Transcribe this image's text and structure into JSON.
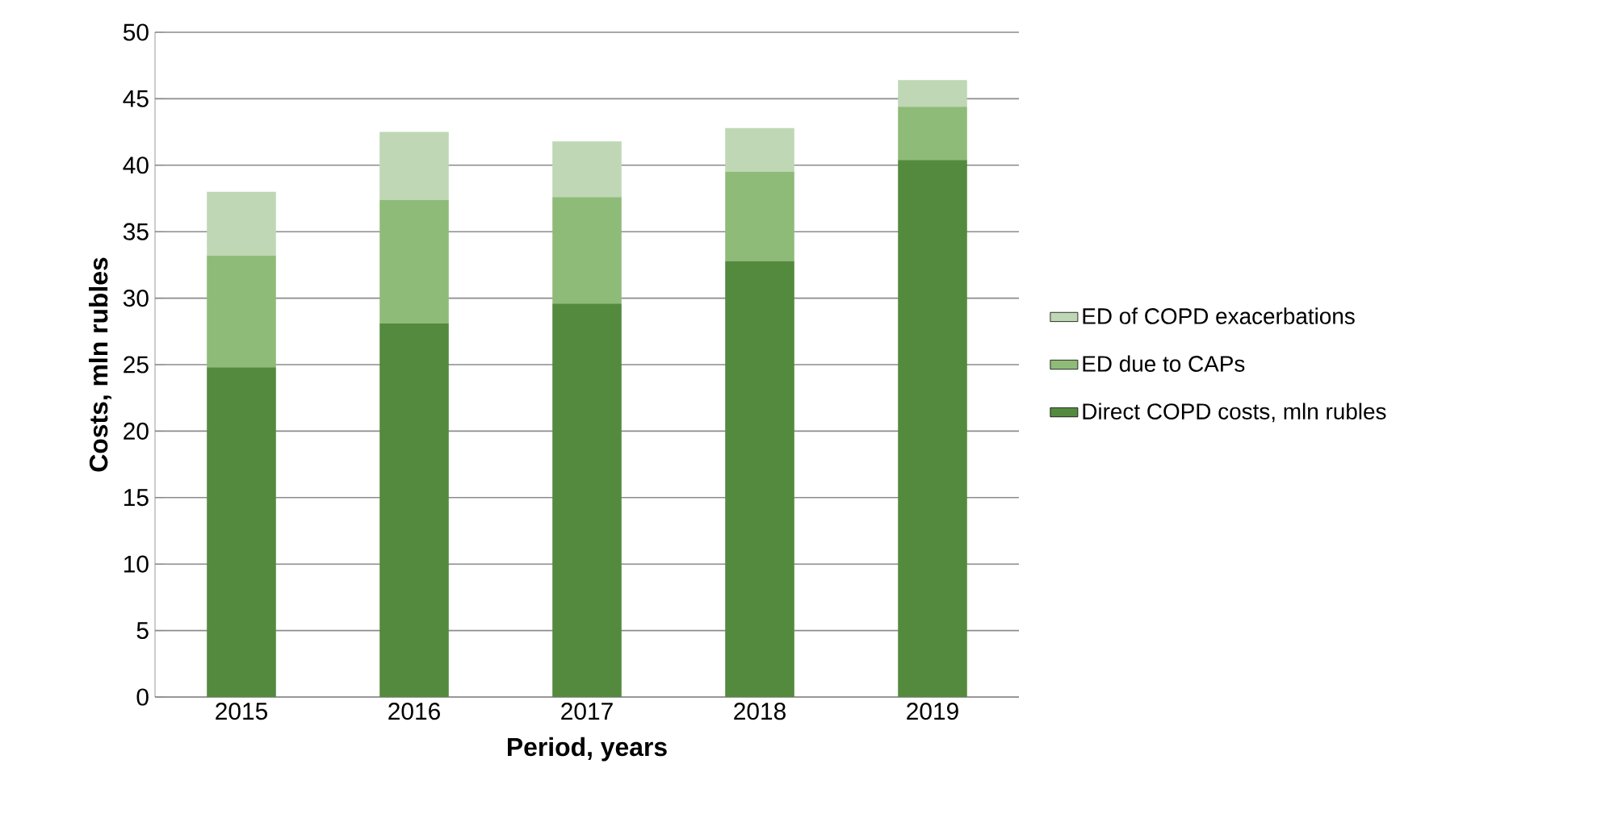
{
  "chart_data": {
    "type": "bar",
    "stacked": true,
    "xlabel": "Period, years",
    "ylabel": "Costs, mln rubles",
    "categories": [
      "2015",
      "2016",
      "2017",
      "2018",
      "2019"
    ],
    "series": [
      {
        "name": "Direct COPD costs, mln rubles",
        "color": "#548a3d",
        "values": [
          24.8,
          28.1,
          29.6,
          32.8,
          40.4
        ]
      },
      {
        "name": "ED due to CAPs",
        "color": "#8fbb79",
        "values": [
          8.4,
          9.3,
          8.0,
          6.7,
          4.0
        ]
      },
      {
        "name": "ED of COPD exacerbations",
        "color": "#bfd7b5",
        "values": [
          4.8,
          5.1,
          4.2,
          3.3,
          2.0
        ]
      }
    ],
    "ylim": [
      0,
      50
    ],
    "yticks": [
      0,
      5,
      10,
      15,
      20,
      25,
      30,
      35,
      40,
      45,
      50
    ],
    "grid": "y",
    "legend": "right"
  }
}
